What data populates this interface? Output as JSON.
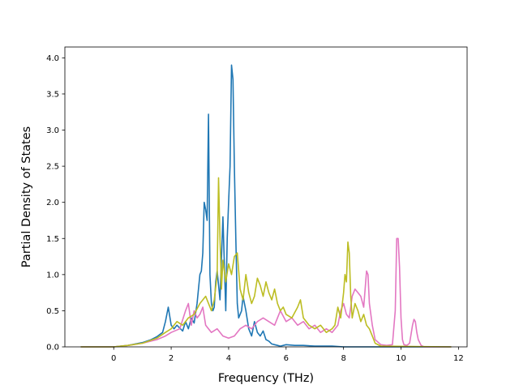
{
  "chart_data": {
    "type": "line",
    "title": "",
    "xlabel": "Frequency (THz)",
    "ylabel": "Partial Density of States",
    "xlim": [
      -1.7,
      12.3
    ],
    "ylim": [
      0,
      4.15
    ],
    "x_ticks": [
      0,
      2,
      4,
      6,
      8,
      10,
      12
    ],
    "y_ticks": [
      0.0,
      0.5,
      1.0,
      1.5,
      2.0,
      2.5,
      3.0,
      3.5,
      4.0
    ],
    "x_tick_labels": [
      "0",
      "2",
      "4",
      "6",
      "8",
      "10",
      "12"
    ],
    "y_tick_labels": [
      "0.0",
      "0.5",
      "1.0",
      "1.5",
      "2.0",
      "2.5",
      "3.0",
      "3.5",
      "4.0"
    ],
    "grid": false,
    "legend": "none",
    "series": [
      {
        "color": "#1f77b4",
        "x": [
          -1.15,
          0.0,
          0.5,
          1.0,
          1.3,
          1.5,
          1.7,
          1.8,
          1.9,
          2.0,
          2.1,
          2.2,
          2.4,
          2.5,
          2.6,
          2.7,
          2.8,
          2.9,
          3.0,
          3.05,
          3.1,
          3.15,
          3.2,
          3.25,
          3.3,
          3.35,
          3.4,
          3.45,
          3.5,
          3.55,
          3.6,
          3.7,
          3.8,
          3.9,
          3.95,
          4.0,
          4.05,
          4.1,
          4.15,
          4.2,
          4.25,
          4.3,
          4.35,
          4.4,
          4.45,
          4.5,
          4.6,
          4.7,
          4.8,
          4.9,
          5.0,
          5.1,
          5.2,
          5.3,
          5.4,
          5.5,
          5.6,
          5.7,
          5.8,
          6.0,
          6.3,
          6.6,
          7.0,
          7.3,
          7.6,
          8.0,
          8.5,
          9.0,
          11.75
        ],
        "y": [
          0.0,
          0.0,
          0.02,
          0.06,
          0.1,
          0.14,
          0.2,
          0.35,
          0.55,
          0.3,
          0.25,
          0.3,
          0.22,
          0.35,
          0.25,
          0.4,
          0.33,
          0.6,
          1.0,
          1.05,
          1.3,
          2.0,
          1.9,
          1.75,
          3.22,
          1.0,
          0.6,
          0.5,
          0.55,
          0.9,
          1.05,
          0.65,
          1.8,
          0.5,
          1.5,
          2.0,
          2.5,
          3.9,
          3.7,
          2.5,
          1.5,
          0.6,
          0.4,
          0.45,
          0.5,
          0.7,
          0.5,
          0.25,
          0.15,
          0.35,
          0.2,
          0.15,
          0.22,
          0.1,
          0.08,
          0.04,
          0.03,
          0.02,
          0.01,
          0.03,
          0.02,
          0.02,
          0.01,
          0.01,
          0.01,
          0.0,
          0.0,
          0.0,
          0.0
        ]
      },
      {
        "color": "#e377c2",
        "x": [
          -1.15,
          0.0,
          0.5,
          1.0,
          1.5,
          1.8,
          2.0,
          2.3,
          2.5,
          2.6,
          2.7,
          2.8,
          2.9,
          3.0,
          3.1,
          3.2,
          3.4,
          3.6,
          3.8,
          4.0,
          4.2,
          4.4,
          4.6,
          4.8,
          5.0,
          5.2,
          5.4,
          5.6,
          5.8,
          6.0,
          6.2,
          6.4,
          6.6,
          6.8,
          7.0,
          7.2,
          7.4,
          7.6,
          7.8,
          7.9,
          8.0,
          8.1,
          8.2,
          8.3,
          8.4,
          8.5,
          8.6,
          8.7,
          8.8,
          8.85,
          8.9,
          9.0,
          9.1,
          9.3,
          9.5,
          9.7,
          9.8,
          9.85,
          9.9,
          9.95,
          10.0,
          10.05,
          10.1,
          10.2,
          10.3,
          10.4,
          10.45,
          10.5,
          10.55,
          10.6,
          10.7,
          10.8,
          11.75
        ],
        "y": [
          0.0,
          0.0,
          0.02,
          0.05,
          0.1,
          0.15,
          0.2,
          0.25,
          0.5,
          0.6,
          0.3,
          0.5,
          0.4,
          0.45,
          0.55,
          0.3,
          0.2,
          0.25,
          0.15,
          0.12,
          0.15,
          0.25,
          0.3,
          0.25,
          0.35,
          0.4,
          0.35,
          0.3,
          0.5,
          0.35,
          0.4,
          0.3,
          0.35,
          0.25,
          0.3,
          0.2,
          0.25,
          0.2,
          0.3,
          0.5,
          0.6,
          0.45,
          0.4,
          0.7,
          0.8,
          0.75,
          0.7,
          0.55,
          1.05,
          1.0,
          0.6,
          0.3,
          0.1,
          0.03,
          0.02,
          0.03,
          0.5,
          1.5,
          1.5,
          1.1,
          0.4,
          0.1,
          0.03,
          0.02,
          0.05,
          0.3,
          0.38,
          0.35,
          0.2,
          0.1,
          0.02,
          0.0,
          0.0
        ]
      },
      {
        "color": "#bcbd22",
        "x": [
          -1.15,
          0.0,
          0.5,
          1.0,
          1.5,
          1.8,
          2.0,
          2.2,
          2.4,
          2.6,
          2.8,
          3.0,
          3.2,
          3.4,
          3.5,
          3.6,
          3.65,
          3.7,
          3.75,
          3.8,
          3.9,
          4.0,
          4.1,
          4.2,
          4.3,
          4.4,
          4.5,
          4.6,
          4.7,
          4.8,
          4.9,
          5.0,
          5.1,
          5.2,
          5.3,
          5.4,
          5.5,
          5.6,
          5.7,
          5.8,
          5.9,
          6.0,
          6.2,
          6.4,
          6.5,
          6.6,
          6.8,
          7.0,
          7.2,
          7.4,
          7.6,
          7.7,
          7.8,
          7.9,
          8.0,
          8.05,
          8.1,
          8.15,
          8.2,
          8.25,
          8.3,
          8.4,
          8.5,
          8.6,
          8.7,
          8.8,
          8.9,
          9.0,
          9.1,
          9.3,
          11.75
        ],
        "y": [
          0.0,
          0.0,
          0.02,
          0.05,
          0.12,
          0.2,
          0.25,
          0.35,
          0.3,
          0.4,
          0.45,
          0.6,
          0.7,
          0.5,
          0.65,
          1.0,
          2.34,
          1.5,
          0.8,
          1.2,
          0.9,
          1.15,
          1.0,
          1.25,
          1.3,
          0.8,
          0.65,
          1.0,
          0.75,
          0.6,
          0.7,
          0.95,
          0.85,
          0.7,
          0.9,
          0.75,
          0.65,
          0.8,
          0.6,
          0.5,
          0.55,
          0.45,
          0.4,
          0.55,
          0.65,
          0.4,
          0.3,
          0.25,
          0.3,
          0.2,
          0.25,
          0.3,
          0.55,
          0.4,
          0.75,
          1.0,
          0.9,
          1.45,
          1.3,
          0.7,
          0.4,
          0.6,
          0.5,
          0.35,
          0.45,
          0.3,
          0.25,
          0.15,
          0.05,
          0.01,
          0.0
        ]
      }
    ]
  }
}
